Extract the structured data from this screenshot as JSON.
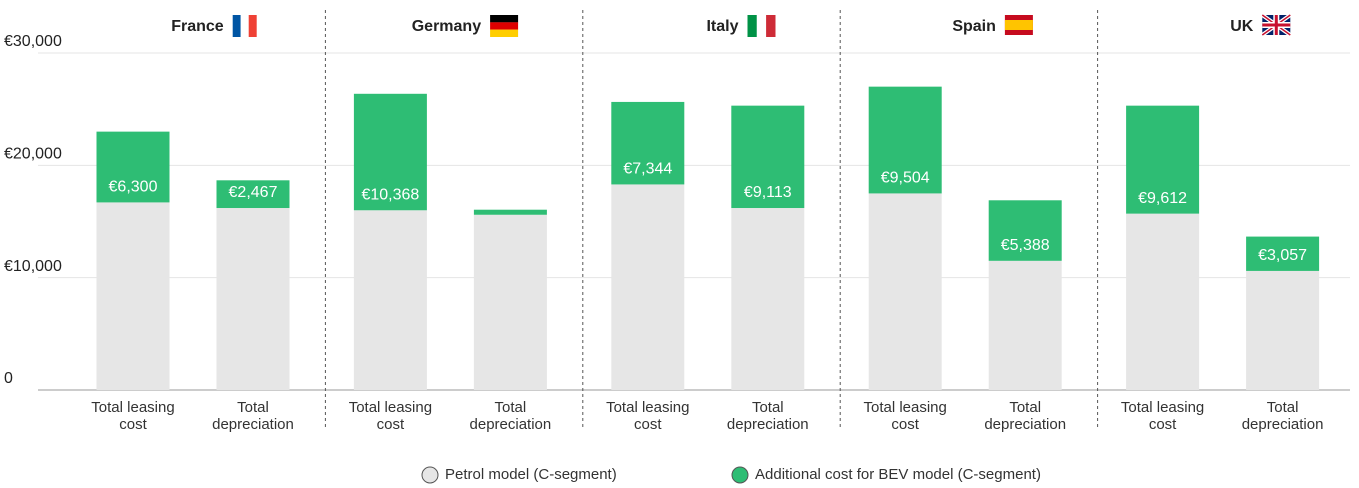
{
  "chart_data": {
    "type": "bar",
    "stacked": true,
    "groups": [
      "France",
      "Germany",
      "Italy",
      "Spain",
      "UK"
    ],
    "categories": [
      "Total leasing cost",
      "Total depreciation",
      "Total leasing cost",
      "Total depreciation",
      "Total leasing cost",
      "Total depreciation",
      "Total leasing cost",
      "Total depreciation",
      "Total leasing cost",
      "Total depreciation"
    ],
    "series": [
      {
        "name": "Petrol model (C-segment)",
        "color": "#e6e6e6",
        "values": [
          16700,
          16200,
          16000,
          15600,
          18300,
          16200,
          17500,
          11500,
          15700,
          10600
        ]
      },
      {
        "name": "Additional cost for BEV model (C-segment)",
        "color": "#2ebd74",
        "values": [
          6300,
          2467,
          10368,
          450,
          7344,
          9113,
          9504,
          5388,
          9612,
          3057
        ],
        "value_labels": [
          "€6,300",
          "€2,467",
          "€10,368",
          null,
          "€7,344",
          "€9,113",
          "€9,504",
          "€5,388",
          "€9,612",
          "€3,057"
        ]
      }
    ],
    "ylim": [
      0,
      30000
    ],
    "yticks": [
      0,
      {
        "value": 10000,
        "label": "€10,000"
      },
      {
        "value": 20000,
        "label": "€20,000"
      },
      {
        "value": 30000,
        "label": "€30,000"
      }
    ],
    "grid": true
  }
}
